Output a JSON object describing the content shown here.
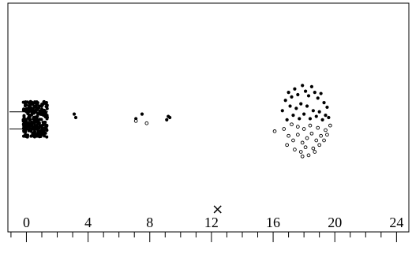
{
  "chart_data": {
    "type": "scatter",
    "title": "",
    "xlabel": "",
    "ylabel": "",
    "xlim": [
      -1.2,
      24.8
    ],
    "ylim": [
      -1,
      1
    ],
    "x_ticks_major": [
      0,
      4,
      8,
      12,
      16,
      20,
      24
    ],
    "x_tick_labels": [
      "0",
      "4",
      "8",
      "12",
      "16",
      "20",
      "24"
    ],
    "x_ticks_minor_step": 1,
    "grid": false,
    "legend": "none",
    "marker_color": "#000000",
    "series": [
      {
        "marker": "filled",
        "points": [
          [
            3.1,
            0.03
          ],
          [
            3.2,
            0.0
          ],
          [
            7.1,
            -0.01
          ],
          [
            7.5,
            0.03
          ],
          [
            9.1,
            -0.02
          ],
          [
            9.2,
            0.01
          ],
          [
            9.3,
            0.0
          ],
          [
            16.8,
            0.15
          ],
          [
            17.0,
            0.22
          ],
          [
            17.2,
            0.18
          ],
          [
            17.4,
            0.25
          ],
          [
            17.6,
            0.2
          ],
          [
            17.9,
            0.28
          ],
          [
            18.1,
            0.23
          ],
          [
            18.3,
            0.19
          ],
          [
            18.5,
            0.27
          ],
          [
            18.7,
            0.22
          ],
          [
            18.9,
            0.17
          ],
          [
            19.1,
            0.21
          ],
          [
            19.3,
            0.13
          ],
          [
            19.5,
            0.09
          ],
          [
            16.6,
            0.06
          ],
          [
            17.1,
            0.1
          ],
          [
            17.5,
            0.08
          ],
          [
            17.8,
            0.12
          ],
          [
            18.2,
            0.1
          ],
          [
            18.6,
            0.06
          ],
          [
            19.0,
            0.05
          ],
          [
            19.4,
            0.02
          ],
          [
            16.9,
            -0.02
          ],
          [
            17.3,
            0.02
          ],
          [
            17.7,
            -0.01
          ],
          [
            18.0,
            0.03
          ],
          [
            18.4,
            -0.01
          ],
          [
            18.8,
            0.01
          ],
          [
            19.2,
            -0.02
          ],
          [
            19.6,
            0.0
          ]
        ]
      },
      {
        "marker": "open",
        "points": [
          [
            7.1,
            -0.03
          ],
          [
            7.8,
            -0.05
          ],
          [
            16.1,
            -0.12
          ],
          [
            16.7,
            -0.1
          ],
          [
            17.0,
            -0.16
          ],
          [
            17.3,
            -0.2
          ],
          [
            17.6,
            -0.15
          ],
          [
            17.9,
            -0.22
          ],
          [
            18.2,
            -0.18
          ],
          [
            18.5,
            -0.14
          ],
          [
            18.8,
            -0.2
          ],
          [
            19.1,
            -0.16
          ],
          [
            19.4,
            -0.11
          ],
          [
            19.7,
            -0.07
          ],
          [
            16.9,
            -0.24
          ],
          [
            17.4,
            -0.28
          ],
          [
            17.8,
            -0.3
          ],
          [
            18.1,
            -0.26
          ],
          [
            18.6,
            -0.27
          ],
          [
            19.0,
            -0.24
          ],
          [
            19.3,
            -0.2
          ],
          [
            17.2,
            -0.06
          ],
          [
            17.6,
            -0.08
          ],
          [
            18.0,
            -0.1
          ],
          [
            18.4,
            -0.07
          ],
          [
            18.9,
            -0.09
          ],
          [
            17.9,
            -0.34
          ],
          [
            18.3,
            -0.33
          ],
          [
            18.7,
            -0.3
          ],
          [
            19.5,
            -0.15
          ]
        ]
      }
    ],
    "dense_cluster": {
      "x_range": [
        -0.2,
        1.4
      ],
      "y_range": [
        -0.17,
        0.14
      ],
      "marker": "filled"
    },
    "annotations": [
      {
        "label": "×",
        "x": 12.4,
        "y": -0.8
      }
    ]
  }
}
